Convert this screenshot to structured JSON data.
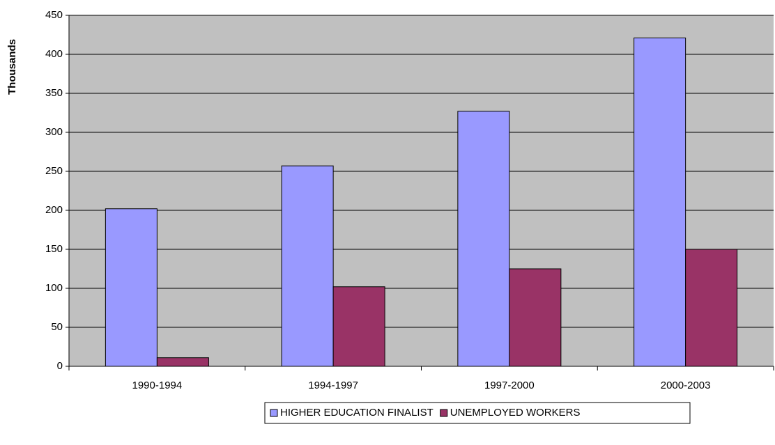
{
  "chart_data": {
    "type": "bar",
    "y_label": "Thousands",
    "categories": [
      "1990-1994",
      "1994-1997",
      "1997-2000",
      "2000-2003"
    ],
    "series": [
      {
        "name": "HIGHER EDUCATION FINALIST",
        "color": "#9999ff",
        "values": [
          202,
          257,
          327,
          421
        ]
      },
      {
        "name": "UNEMPLOYED WORKERS",
        "color": "#993366",
        "values": [
          11,
          102,
          125,
          150
        ]
      }
    ],
    "ylim": [
      0,
      450
    ],
    "yticks": [
      0,
      50,
      100,
      150,
      200,
      250,
      300,
      350,
      400,
      450
    ],
    "grid": true,
    "plot_background": "#c0c0c0",
    "legend": "bottom"
  }
}
